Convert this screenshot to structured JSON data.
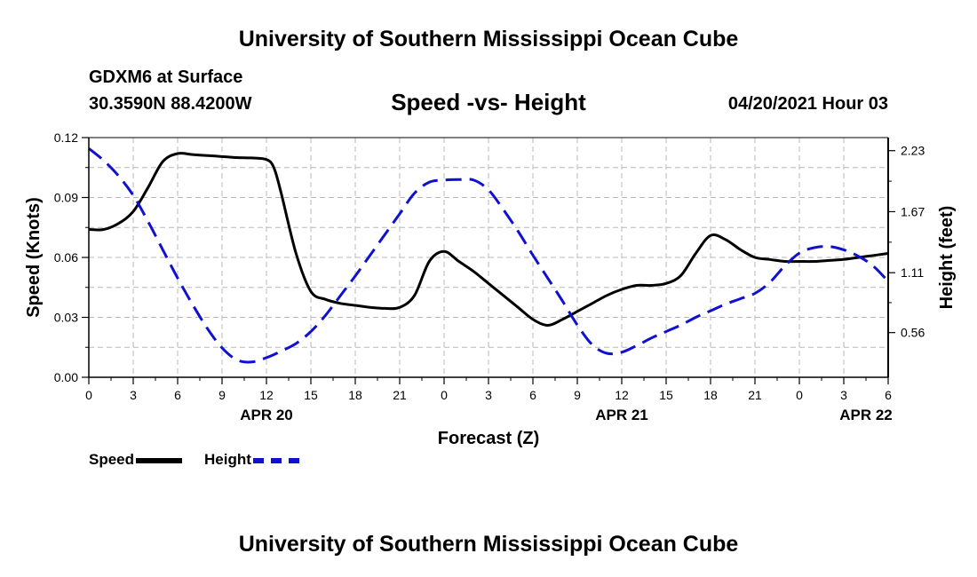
{
  "header": {
    "title": "University of Southern Mississippi Ocean Cube",
    "station": "GDXM6 at Surface",
    "coords": "30.3590N  88.4200W",
    "subtitle": "Speed -vs- Height",
    "datetime": "04/20/2021 Hour 03",
    "footer_title": "University of Southern Mississippi Ocean Cube"
  },
  "legend": {
    "speed_label": "Speed",
    "height_label": "Height"
  },
  "colors": {
    "speed": "#000000",
    "height": "#1010d0",
    "grid": "#b8b8b8"
  },
  "chart_data": {
    "type": "line",
    "title": "Speed -vs- Height",
    "xlabel": "Forecast (Z)",
    "ylabel": "Speed (Knots)",
    "y2label": "Height (feet)",
    "xlim": [
      0,
      54
    ],
    "ylim": [
      0,
      0.12
    ],
    "y2lim": [
      0.15,
      2.35
    ],
    "x_ticks": [
      0,
      3,
      6,
      9,
      12,
      15,
      18,
      21,
      24,
      27,
      30,
      33,
      36,
      39,
      42,
      45,
      48,
      51,
      54
    ],
    "x_tick_labels": [
      "0",
      "3",
      "6",
      "9",
      "12",
      "15",
      "18",
      "21",
      "0",
      "3",
      "6",
      "9",
      "12",
      "15",
      "18",
      "21",
      "0",
      "3",
      "6"
    ],
    "y_ticks": [
      0,
      0.03,
      0.06,
      0.09,
      0.12
    ],
    "y_tick_labels": [
      "0.00",
      "0.03",
      "0.06",
      "0.09",
      "0.12"
    ],
    "y2_ticks": [
      0.56,
      1.11,
      1.67,
      2.23
    ],
    "y2_tick_labels": [
      "0.56",
      "1.11",
      "1.67",
      "2.23"
    ],
    "date_labels": [
      {
        "x": 12,
        "label": "APR 20"
      },
      {
        "x": 36,
        "label": "APR 21"
      },
      {
        "x": 52.5,
        "label": "APR 22"
      }
    ],
    "series": [
      {
        "name": "Speed",
        "axis": "left",
        "x": [
          0,
          1,
          2,
          3,
          4,
          5,
          6,
          7,
          8,
          9,
          10,
          11,
          12,
          12.5,
          13,
          14,
          15,
          16,
          17,
          18,
          19,
          20,
          21,
          22,
          23,
          24,
          25,
          26,
          27,
          28,
          29,
          30,
          31,
          32,
          33,
          34,
          35,
          36,
          37,
          38,
          39,
          40,
          41,
          42,
          43,
          44,
          45,
          46,
          47,
          48,
          49,
          50,
          51,
          52,
          53,
          54
        ],
        "values": [
          0.074,
          0.074,
          0.077,
          0.083,
          0.095,
          0.108,
          0.112,
          0.1115,
          0.111,
          0.1105,
          0.11,
          0.1098,
          0.109,
          0.105,
          0.092,
          0.062,
          0.043,
          0.039,
          0.037,
          0.036,
          0.035,
          0.0345,
          0.035,
          0.041,
          0.058,
          0.063,
          0.058,
          0.053,
          0.047,
          0.041,
          0.035,
          0.029,
          0.026,
          0.029,
          0.033,
          0.037,
          0.041,
          0.044,
          0.046,
          0.046,
          0.047,
          0.051,
          0.062,
          0.071,
          0.069,
          0.064,
          0.06,
          0.059,
          0.058,
          0.058,
          0.058,
          0.0585,
          0.059,
          0.06,
          0.061,
          0.062
        ]
      },
      {
        "name": "Height",
        "axis": "right",
        "x": [
          0,
          1,
          2,
          3,
          4,
          5,
          6,
          7,
          8,
          9,
          10,
          11,
          12,
          13,
          14,
          15,
          16,
          17,
          18,
          19,
          20,
          21,
          22,
          23,
          24,
          25,
          26,
          27,
          28,
          29,
          30,
          31,
          32,
          33,
          34,
          35,
          36,
          37,
          38,
          39,
          40,
          41,
          42,
          43,
          44,
          45,
          46,
          47,
          48,
          49,
          50,
          51,
          52,
          53,
          54
        ],
        "values": [
          2.25,
          2.14,
          2.0,
          1.82,
          1.58,
          1.32,
          1.06,
          0.82,
          0.6,
          0.42,
          0.31,
          0.29,
          0.33,
          0.39,
          0.46,
          0.57,
          0.72,
          0.9,
          1.08,
          1.27,
          1.46,
          1.65,
          1.84,
          1.94,
          1.96,
          1.965,
          1.96,
          1.87,
          1.69,
          1.49,
          1.27,
          1.06,
          0.85,
          0.63,
          0.45,
          0.37,
          0.38,
          0.44,
          0.51,
          0.57,
          0.63,
          0.7,
          0.76,
          0.82,
          0.87,
          0.92,
          1.02,
          1.17,
          1.29,
          1.34,
          1.35,
          1.32,
          1.26,
          1.17,
          1.03
        ]
      }
    ]
  }
}
